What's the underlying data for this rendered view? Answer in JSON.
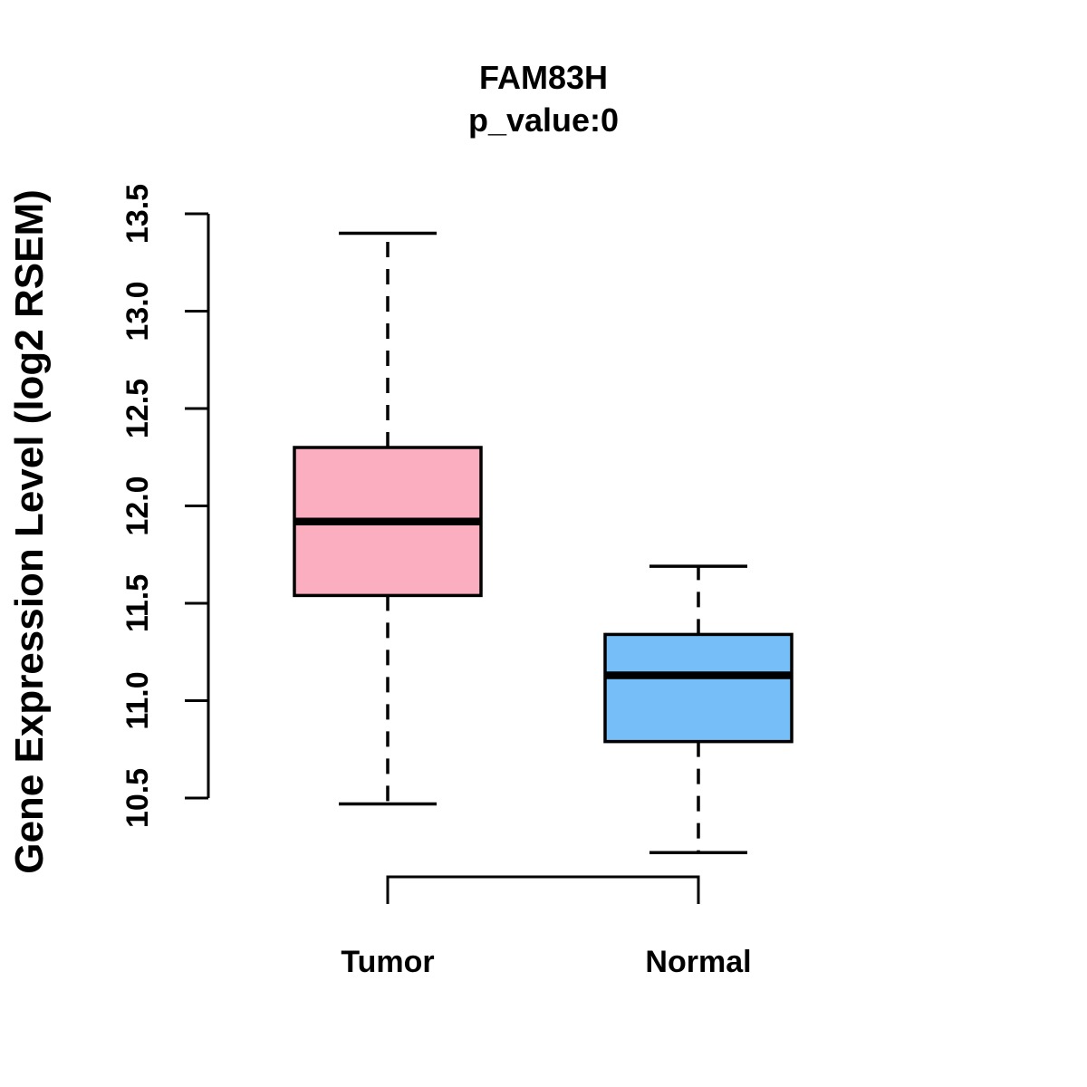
{
  "chart_data": {
    "type": "boxplot",
    "title": "FAM83H",
    "subtitle": "p_value:0",
    "ylabel": "Gene Expression Level (log2 RSEM)",
    "xlabel": "",
    "categories": [
      "Tumor",
      "Normal"
    ],
    "yticks": [
      10.5,
      11.0,
      11.5,
      12.0,
      12.5,
      13.0,
      13.5
    ],
    "ytick_labels": [
      "10.5",
      "11.0",
      "11.5",
      "12.0",
      "12.5",
      "13.0",
      "13.5"
    ],
    "ylim": [
      10.2,
      13.5
    ],
    "grid": false,
    "legend": "none",
    "series": [
      {
        "name": "Tumor",
        "color": "#FBAEC0",
        "lower_whisker": 10.47,
        "q1": 11.54,
        "median": 11.92,
        "q3": 12.3,
        "upper_whisker": 13.4
      },
      {
        "name": "Normal",
        "color": "#75BEF7",
        "lower_whisker": 10.22,
        "q1": 10.79,
        "median": 11.13,
        "q3": 11.34,
        "upper_whisker": 11.69
      }
    ],
    "stroke_color": "#000000"
  }
}
